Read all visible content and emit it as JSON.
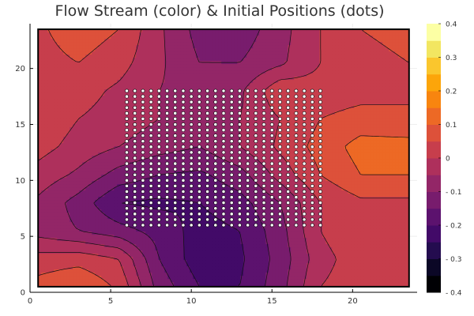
{
  "chart_data": {
    "type": "heatmap",
    "subtype": "filled-contour-with-scatter",
    "title": "Flow Stream (color) & Initial Positions (dots)",
    "xlabel": "",
    "ylabel": "",
    "xlim": [
      0,
      24
    ],
    "ylim": [
      0,
      24
    ],
    "x_ticks": [
      0,
      5,
      10,
      15,
      20
    ],
    "y_ticks": [
      0,
      5,
      10,
      15,
      20
    ],
    "x_tick_labels": [
      "0",
      "5",
      "10",
      "15",
      "20"
    ],
    "y_tick_labels": [
      "0",
      "5",
      "10",
      "15",
      "20"
    ],
    "domain_x": [
      0.5,
      23.5
    ],
    "domain_y": [
      0.5,
      23.5
    ],
    "grid": true,
    "contour_lines": true,
    "colormap": "inferno",
    "colorbar": {
      "range": [
        -0.4,
        0.4
      ],
      "levels": [
        -0.4,
        -0.35,
        -0.3,
        -0.25,
        -0.2,
        -0.15,
        -0.1,
        -0.05,
        0,
        0.05,
        0.1,
        0.15,
        0.2,
        0.25,
        0.3,
        0.35,
        0.4
      ],
      "tick_values": [
        -0.4,
        -0.3,
        -0.2,
        -0.1,
        0,
        0.1,
        0.2,
        0.3,
        0.4
      ],
      "tick_labels": [
        "- 0.4",
        "- 0.3",
        "- 0.2",
        "- 0.1",
        "0",
        "0.1",
        "0.2",
        "0.3",
        "0.4"
      ],
      "colors": [
        "#000004",
        "#0b0726",
        "#240c4f",
        "#420a68",
        "#5c126e",
        "#781c6d",
        "#932667",
        "#ae305c",
        "#c73e4c",
        "#dd513a",
        "#ed6925",
        "#f8850f",
        "#fca50a",
        "#fac62d",
        "#f2e661",
        "#fcffa4"
      ]
    },
    "field_grid": {
      "x": [
        0.5,
        3,
        5.5,
        8,
        10.5,
        13,
        15.5,
        18,
        20.5,
        23.5
      ],
      "y": [
        0.5,
        3,
        5.5,
        8,
        10.5,
        13,
        15.5,
        18,
        20.5,
        23.5
      ],
      "z": [
        [
          0.07,
          0.1,
          0.04,
          -0.12,
          -0.2,
          -0.2,
          -0.12,
          0.0,
          0.03,
          0.03
        ],
        [
          0.02,
          0.03,
          0.0,
          -0.15,
          -0.23,
          -0.21,
          -0.13,
          -0.02,
          0.03,
          0.04
        ],
        [
          -0.07,
          -0.1,
          -0.13,
          -0.17,
          -0.22,
          -0.2,
          -0.12,
          0.0,
          0.05,
          0.05
        ],
        [
          -0.06,
          -0.12,
          -0.2,
          -0.21,
          -0.2,
          -0.17,
          -0.1,
          0.0,
          0.04,
          0.04
        ],
        [
          -0.02,
          -0.06,
          -0.12,
          -0.15,
          -0.16,
          -0.12,
          -0.03,
          0.05,
          0.1,
          0.1
        ],
        [
          0.02,
          -0.02,
          -0.05,
          -0.08,
          -0.1,
          -0.05,
          0.01,
          0.07,
          0.12,
          0.12
        ],
        [
          0.04,
          0.0,
          -0.02,
          -0.05,
          -0.07,
          -0.05,
          0.0,
          0.05,
          0.07,
          0.06
        ],
        [
          0.03,
          0.02,
          -0.01,
          -0.05,
          -0.07,
          -0.06,
          0.04,
          0.02,
          0.03,
          0.04
        ],
        [
          0.03,
          0.05,
          0.02,
          -0.04,
          -0.1,
          -0.1,
          -0.06,
          0.0,
          0.04,
          0.05
        ],
        [
          0.04,
          0.08,
          0.05,
          -0.04,
          -0.12,
          -0.13,
          -0.07,
          0.0,
          0.05,
          0.06
        ]
      ]
    },
    "scatter": {
      "name": "Initial Positions",
      "x_range": [
        6,
        18
      ],
      "y_range": [
        6,
        18
      ],
      "x_step": 0.5,
      "y_step": 0.5,
      "color": "#ffffff",
      "edge_color": "#000000"
    }
  }
}
